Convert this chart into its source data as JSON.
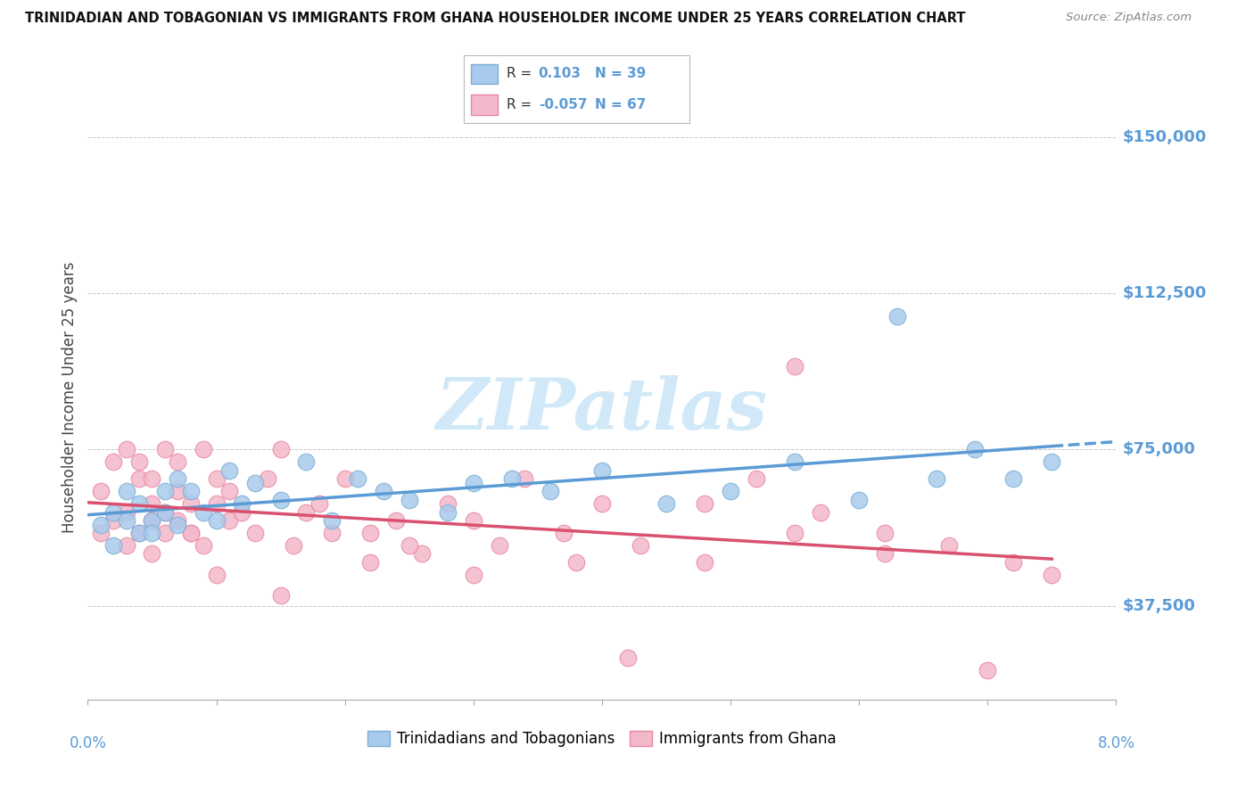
{
  "title": "TRINIDADIAN AND TOBAGONIAN VS IMMIGRANTS FROM GHANA HOUSEHOLDER INCOME UNDER 25 YEARS CORRELATION CHART",
  "source": "Source: ZipAtlas.com",
  "watermark": "ZIPatlas",
  "ylabel": "Householder Income Under 25 years",
  "xlim": [
    0.0,
    0.08
  ],
  "ylim": [
    15000,
    160000
  ],
  "yticks": [
    37500,
    75000,
    112500,
    150000
  ],
  "ytick_labels": [
    "$37,500",
    "$75,000",
    "$112,500",
    "$150,000"
  ],
  "blue_R": 0.103,
  "blue_N": 39,
  "pink_R": -0.057,
  "pink_N": 67,
  "blue_color": "#a8caec",
  "pink_color": "#f4b8cb",
  "blue_edge_color": "#7aafd4",
  "pink_edge_color": "#e8879f",
  "blue_line_color": "#5b9bd5",
  "pink_line_color": "#d9516e",
  "axis_color": "#5b9bd5",
  "watermark_color": "#d0e8f7",
  "grid_color": "#bbbbbb",
  "legend_label_blue": "Trinidadians and Tobagonians",
  "legend_label_pink": "Immigrants from Ghana",
  "blue_scatter_x": [
    0.001,
    0.002,
    0.002,
    0.003,
    0.003,
    0.004,
    0.004,
    0.005,
    0.005,
    0.006,
    0.006,
    0.007,
    0.007,
    0.008,
    0.009,
    0.01,
    0.011,
    0.012,
    0.013,
    0.015,
    0.017,
    0.019,
    0.021,
    0.023,
    0.025,
    0.028,
    0.03,
    0.033,
    0.036,
    0.04,
    0.045,
    0.05,
    0.055,
    0.06,
    0.063,
    0.066,
    0.069,
    0.072,
    0.075
  ],
  "blue_scatter_y": [
    57000,
    60000,
    52000,
    58000,
    65000,
    55000,
    62000,
    58000,
    55000,
    65000,
    60000,
    68000,
    57000,
    65000,
    60000,
    58000,
    70000,
    62000,
    67000,
    63000,
    72000,
    58000,
    68000,
    65000,
    63000,
    60000,
    67000,
    68000,
    65000,
    70000,
    62000,
    65000,
    72000,
    63000,
    107000,
    68000,
    75000,
    68000,
    72000
  ],
  "pink_scatter_x": [
    0.001,
    0.001,
    0.002,
    0.002,
    0.003,
    0.003,
    0.003,
    0.004,
    0.004,
    0.004,
    0.005,
    0.005,
    0.005,
    0.006,
    0.006,
    0.006,
    0.007,
    0.007,
    0.007,
    0.008,
    0.008,
    0.009,
    0.009,
    0.01,
    0.01,
    0.011,
    0.011,
    0.012,
    0.013,
    0.014,
    0.015,
    0.016,
    0.017,
    0.018,
    0.019,
    0.02,
    0.022,
    0.024,
    0.026,
    0.028,
    0.03,
    0.032,
    0.034,
    0.037,
    0.04,
    0.043,
    0.048,
    0.052,
    0.057,
    0.062,
    0.067,
    0.072,
    0.055,
    0.042,
    0.03,
    0.022,
    0.015,
    0.01,
    0.005,
    0.008,
    0.025,
    0.038,
    0.048,
    0.055,
    0.062,
    0.07,
    0.075
  ],
  "pink_scatter_y": [
    65000,
    55000,
    72000,
    58000,
    60000,
    52000,
    75000,
    68000,
    55000,
    72000,
    62000,
    58000,
    68000,
    75000,
    60000,
    55000,
    72000,
    65000,
    58000,
    62000,
    55000,
    75000,
    52000,
    68000,
    62000,
    65000,
    58000,
    60000,
    55000,
    68000,
    75000,
    52000,
    60000,
    62000,
    55000,
    68000,
    55000,
    58000,
    50000,
    62000,
    58000,
    52000,
    68000,
    55000,
    62000,
    52000,
    48000,
    68000,
    60000,
    55000,
    52000,
    48000,
    95000,
    25000,
    45000,
    48000,
    40000,
    45000,
    50000,
    55000,
    52000,
    48000,
    62000,
    55000,
    50000,
    22000,
    45000
  ]
}
